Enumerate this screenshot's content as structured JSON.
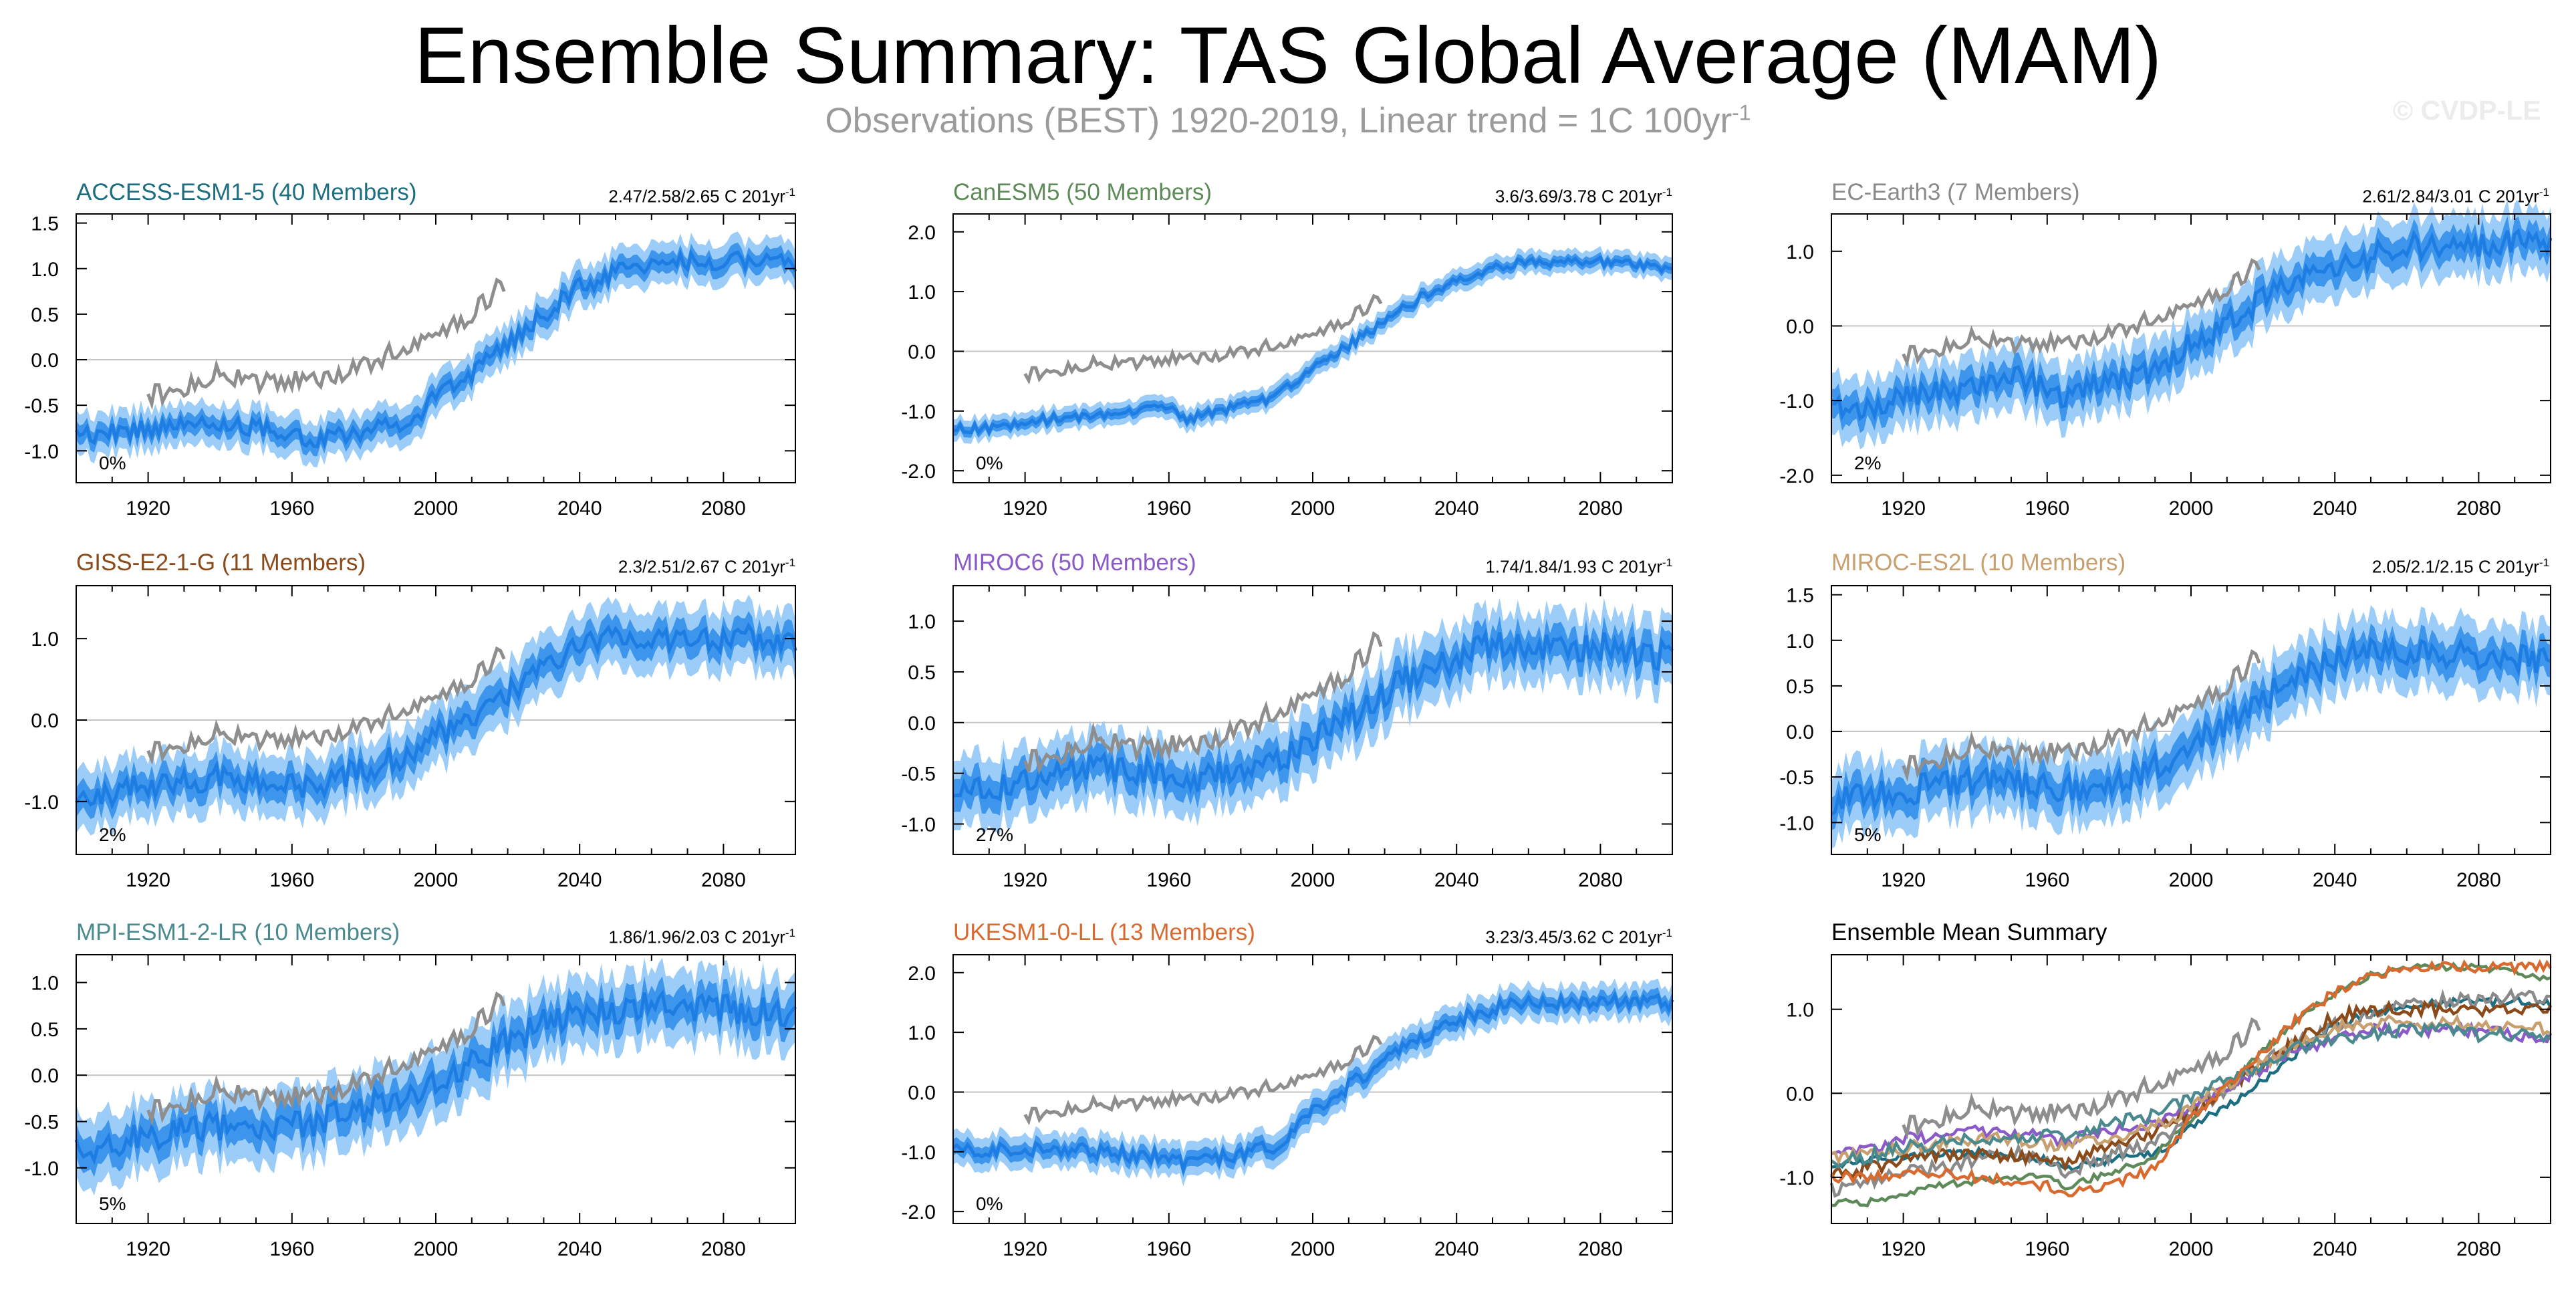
{
  "title": "Ensemble Summary: TAS Global Average (MAM)",
  "subtitle": {
    "text": "Observations (BEST) 1920-2019, Linear trend = 1C 100yr",
    "superscript": "-1"
  },
  "copyright": "© CVDP-LE",
  "colors": {
    "observations": "#8e8e8e",
    "ensemble_mean": "#1e7de3",
    "inner_band": "#3d96ec",
    "outer_band": "#9ccdf8",
    "zero_line": "#c4c4c4"
  },
  "chart_data": [
    {
      "type": "line",
      "title": "ACCESS-ESM1-5 (40 Members)",
      "title_color": "#1c6e80",
      "trend": "2.47/2.58/2.65 C 201yr",
      "trend_superscript": "-1",
      "percent": "0%",
      "xlim": [
        1900,
        2100
      ],
      "ylim": [
        -1.35,
        1.6
      ],
      "yticks": [
        "1.5",
        "1.0",
        "0.5",
        "0.0",
        "-0.5",
        "-1.0"
      ],
      "xticks": [
        "1920",
        "1960",
        "2000",
        "2040",
        "2080"
      ],
      "ensemble_mean": {
        "x": [
          1900,
          1910,
          1920,
          1930,
          1940,
          1950,
          1960,
          1965,
          1970,
          1980,
          1990,
          1995,
          2000,
          2010,
          2020,
          2030,
          2040,
          2050,
          2060,
          2070,
          2080,
          2090,
          2100
        ],
        "y": [
          -0.85,
          -0.8,
          -0.75,
          -0.72,
          -0.7,
          -0.75,
          -0.8,
          -0.88,
          -0.85,
          -0.78,
          -0.72,
          -0.6,
          -0.4,
          -0.15,
          0.15,
          0.5,
          0.8,
          0.95,
          1.05,
          1.08,
          1.08,
          1.1,
          1.05
        ]
      },
      "band_halfwidth": 0.12,
      "observations": {
        "x": [
          1920,
          1930,
          1940,
          1950,
          1960,
          1970,
          1980,
          1990,
          2000,
          2010,
          2019
        ],
        "y": [
          -0.4,
          -0.3,
          -0.15,
          -0.25,
          -0.2,
          -0.2,
          -0.05,
          0.1,
          0.3,
          0.5,
          0.85
        ]
      }
    },
    {
      "type": "line",
      "title": "CanESM5 (50 Members)",
      "title_color": "#5e8a5a",
      "trend": "3.6/3.69/3.78 C 201yr",
      "trend_superscript": "-1",
      "percent": "0%",
      "xlim": [
        1900,
        2100
      ],
      "ylim": [
        -2.2,
        2.3
      ],
      "yticks": [
        "2.0",
        "1.0",
        "0.0",
        "-1.0",
        "-2.0"
      ],
      "xticks": [
        "1920",
        "1960",
        "2000",
        "2040",
        "2080"
      ],
      "ensemble_mean": {
        "x": [
          1900,
          1910,
          1920,
          1930,
          1940,
          1950,
          1960,
          1965,
          1970,
          1980,
          1990,
          1995,
          2000,
          2010,
          2020,
          2030,
          2040,
          2050,
          2060,
          2070,
          2080,
          2090,
          2100
        ],
        "y": [
          -1.3,
          -1.3,
          -1.2,
          -1.1,
          -1.05,
          -1.0,
          -0.95,
          -1.15,
          -1.05,
          -0.9,
          -0.75,
          -0.5,
          -0.3,
          0.1,
          0.5,
          0.9,
          1.2,
          1.4,
          1.5,
          1.5,
          1.5,
          1.45,
          1.35
        ]
      },
      "band_halfwidth": 0.1,
      "observations": {
        "x": [
          1920,
          1930,
          1940,
          1950,
          1960,
          1970,
          1980,
          1990,
          2000,
          2010,
          2019
        ],
        "y": [
          -0.4,
          -0.3,
          -0.2,
          -0.2,
          -0.1,
          -0.1,
          0.0,
          0.1,
          0.3,
          0.55,
          0.9
        ]
      }
    },
    {
      "type": "line",
      "title": "EC-Earth3 (7 Members)",
      "title_color": "#8a8a8a",
      "trend": "2.61/2.84/3.01 C 201yr",
      "trend_superscript": "-1",
      "percent": "2%",
      "xlim": [
        1900,
        2100
      ],
      "ylim": [
        -2.1,
        1.5
      ],
      "yticks": [
        "1.0",
        "0.0",
        "-1.0",
        "-2.0"
      ],
      "xticks": [
        "1920",
        "1960",
        "2000",
        "2040",
        "2080"
      ],
      "ensemble_mean": {
        "x": [
          1900,
          1910,
          1920,
          1930,
          1940,
          1950,
          1960,
          1965,
          1970,
          1980,
          1990,
          1995,
          2000,
          2010,
          2020,
          2030,
          2040,
          2050,
          2060,
          2070,
          2080,
          2090,
          2100
        ],
        "y": [
          -1.15,
          -1.05,
          -0.95,
          -0.9,
          -0.8,
          -0.7,
          -0.8,
          -0.95,
          -0.85,
          -0.7,
          -0.6,
          -0.45,
          -0.25,
          0.05,
          0.35,
          0.6,
          0.8,
          0.95,
          1.05,
          1.1,
          1.1,
          1.15,
          1.15
        ]
      },
      "band_halfwidth": 0.22,
      "observations": {
        "x": [
          1920,
          1930,
          1940,
          1950,
          1960,
          1970,
          1980,
          1990,
          2000,
          2010,
          2019
        ],
        "y": [
          -0.4,
          -0.3,
          -0.15,
          -0.25,
          -0.2,
          -0.2,
          -0.05,
          0.1,
          0.3,
          0.5,
          0.85
        ]
      }
    },
    {
      "type": "line",
      "title": "GISS-E2-1-G (11 Members)",
      "title_color": "#8a4a1a",
      "trend": "2.3/2.51/2.67 C 201yr",
      "trend_superscript": "-1",
      "percent": "2%",
      "xlim": [
        1900,
        2100
      ],
      "ylim": [
        -1.65,
        1.65
      ],
      "yticks": [
        "1.0",
        "0.0",
        "-1.0"
      ],
      "xticks": [
        "1920",
        "1960",
        "2000",
        "2040",
        "2080"
      ],
      "ensemble_mean": {
        "x": [
          1900,
          1910,
          1920,
          1930,
          1940,
          1950,
          1960,
          1965,
          1970,
          1980,
          1990,
          1995,
          2000,
          2010,
          2020,
          2030,
          2040,
          2050,
          2060,
          2070,
          2080,
          2090,
          2100
        ],
        "y": [
          -0.95,
          -0.9,
          -0.8,
          -0.75,
          -0.7,
          -0.75,
          -0.8,
          -0.85,
          -0.75,
          -0.6,
          -0.45,
          -0.35,
          -0.2,
          0.05,
          0.35,
          0.65,
          0.9,
          1.0,
          1.0,
          1.0,
          1.0,
          1.0,
          1.0
        ]
      },
      "band_halfwidth": 0.2,
      "observations": {
        "x": [
          1920,
          1930,
          1940,
          1950,
          1960,
          1970,
          1980,
          1990,
          2000,
          2010,
          2019
        ],
        "y": [
          -0.4,
          -0.3,
          -0.15,
          -0.25,
          -0.2,
          -0.2,
          -0.05,
          0.1,
          0.3,
          0.5,
          0.85
        ]
      }
    },
    {
      "type": "line",
      "title": "MIROC6 (50 Members)",
      "title_color": "#8a5ac8",
      "trend": "1.74/1.84/1.93 C 201yr",
      "trend_superscript": "-1",
      "percent": "27%",
      "xlim": [
        1900,
        2100
      ],
      "ylim": [
        -1.3,
        1.35
      ],
      "yticks": [
        "1.0",
        "0.5",
        "0.0",
        "-0.5",
        "-1.0"
      ],
      "xticks": [
        "1920",
        "1960",
        "2000",
        "2040",
        "2080"
      ],
      "ensemble_mean": {
        "x": [
          1900,
          1910,
          1920,
          1930,
          1940,
          1950,
          1960,
          1965,
          1970,
          1980,
          1990,
          1995,
          2000,
          2010,
          2020,
          2030,
          2040,
          2050,
          2060,
          2070,
          2080,
          2090,
          2100
        ],
        "y": [
          -0.75,
          -0.65,
          -0.55,
          -0.5,
          -0.45,
          -0.5,
          -0.5,
          -0.6,
          -0.5,
          -0.45,
          -0.35,
          -0.3,
          -0.15,
          0.05,
          0.3,
          0.5,
          0.65,
          0.75,
          0.75,
          0.75,
          0.75,
          0.7,
          0.65
        ]
      },
      "band_halfwidth": 0.18,
      "observations": {
        "x": [
          1920,
          1930,
          1940,
          1950,
          1960,
          1970,
          1980,
          1990,
          2000,
          2010,
          2019
        ],
        "y": [
          -0.4,
          -0.3,
          -0.15,
          -0.25,
          -0.2,
          -0.2,
          -0.05,
          0.1,
          0.3,
          0.5,
          0.85
        ]
      }
    },
    {
      "type": "line",
      "title": "MIROC-ES2L (10 Members)",
      "title_color": "#c8a070",
      "trend": "2.05/2.1/2.15 C 201yr",
      "trend_superscript": "-1",
      "percent": "5%",
      "xlim": [
        1900,
        2100
      ],
      "ylim": [
        -1.35,
        1.6
      ],
      "yticks": [
        "1.5",
        "1.0",
        "0.5",
        "0.0",
        "-0.5",
        "-1.0"
      ],
      "xticks": [
        "1920",
        "1960",
        "2000",
        "2040",
        "2080"
      ],
      "ensemble_mean": {
        "x": [
          1900,
          1910,
          1920,
          1930,
          1940,
          1950,
          1960,
          1965,
          1970,
          1980,
          1990,
          1995,
          2000,
          2010,
          2020,
          2030,
          2040,
          2050,
          2060,
          2070,
          2080,
          2090,
          2100
        ],
        "y": [
          -0.75,
          -0.7,
          -0.65,
          -0.6,
          -0.55,
          -0.55,
          -0.6,
          -0.65,
          -0.6,
          -0.5,
          -0.4,
          -0.3,
          -0.15,
          0.1,
          0.35,
          0.6,
          0.8,
          0.85,
          0.85,
          0.85,
          0.8,
          0.8,
          0.75
        ]
      },
      "band_halfwidth": 0.2,
      "observations": {
        "x": [
          1920,
          1930,
          1940,
          1950,
          1960,
          1970,
          1980,
          1990,
          2000,
          2010,
          2019
        ],
        "y": [
          -0.4,
          -0.3,
          -0.15,
          -0.25,
          -0.2,
          -0.2,
          -0.05,
          0.1,
          0.3,
          0.5,
          0.85
        ]
      }
    },
    {
      "type": "line",
      "title": "MPI-ESM1-2-LR (10 Members)",
      "title_color": "#4a8a8e",
      "trend": "1.86/1.96/2.03 C 201yr",
      "trend_superscript": "-1",
      "percent": "5%",
      "xlim": [
        1900,
        2100
      ],
      "ylim": [
        -1.6,
        1.3
      ],
      "yticks": [
        "1.0",
        "0.5",
        "0.0",
        "-0.5",
        "-1.0"
      ],
      "xticks": [
        "1920",
        "1960",
        "2000",
        "2040",
        "2080"
      ],
      "ensemble_mean": {
        "x": [
          1900,
          1910,
          1920,
          1930,
          1940,
          1950,
          1960,
          1965,
          1970,
          1980,
          1990,
          1995,
          2000,
          2010,
          2020,
          2030,
          2040,
          2050,
          2060,
          2070,
          2080,
          2090,
          2100
        ],
        "y": [
          -0.85,
          -0.75,
          -0.65,
          -0.6,
          -0.55,
          -0.55,
          -0.5,
          -0.55,
          -0.45,
          -0.35,
          -0.25,
          -0.15,
          -0.05,
          0.15,
          0.35,
          0.55,
          0.65,
          0.7,
          0.75,
          0.75,
          0.7,
          0.7,
          0.65
        ]
      },
      "band_halfwidth": 0.2,
      "observations": {
        "x": [
          1920,
          1930,
          1940,
          1950,
          1960,
          1970,
          1980,
          1990,
          2000,
          2010,
          2019
        ],
        "y": [
          -0.4,
          -0.3,
          -0.15,
          -0.25,
          -0.2,
          -0.2,
          -0.05,
          0.1,
          0.3,
          0.5,
          0.85
        ]
      }
    },
    {
      "type": "line",
      "title": "UKESM1-0-LL (13 Members)",
      "title_color": "#d86a30",
      "trend": "3.23/3.45/3.62 C 201yr",
      "trend_superscript": "-1",
      "percent": "0%",
      "xlim": [
        1900,
        2100
      ],
      "ylim": [
        -2.2,
        2.3
      ],
      "yticks": [
        "2.0",
        "1.0",
        "0.0",
        "-1.0",
        "-2.0"
      ],
      "xticks": [
        "1920",
        "1960",
        "2000",
        "2040",
        "2080"
      ],
      "ensemble_mean": {
        "x": [
          1900,
          1910,
          1920,
          1930,
          1940,
          1950,
          1960,
          1965,
          1970,
          1980,
          1990,
          1995,
          2000,
          2010,
          2020,
          2030,
          2040,
          2050,
          2060,
          2070,
          2080,
          2090,
          2100
        ],
        "y": [
          -1.0,
          -1.0,
          -0.95,
          -0.95,
          -1.0,
          -1.05,
          -1.1,
          -1.2,
          -1.15,
          -1.05,
          -0.9,
          -0.6,
          -0.3,
          0.1,
          0.5,
          0.9,
          1.2,
          1.4,
          1.5,
          1.5,
          1.5,
          1.5,
          1.5
        ]
      },
      "band_halfwidth": 0.15,
      "observations": {
        "x": [
          1920,
          1930,
          1940,
          1950,
          1960,
          1970,
          1980,
          1990,
          2000,
          2010,
          2019
        ],
        "y": [
          -0.4,
          -0.3,
          -0.2,
          -0.2,
          -0.1,
          -0.1,
          0.0,
          0.1,
          0.3,
          0.55,
          0.9
        ]
      }
    },
    {
      "type": "line",
      "title": "Ensemble Mean Summary",
      "title_color": "#000000",
      "trend": "",
      "trend_superscript": "",
      "percent": "",
      "xlim": [
        1900,
        2100
      ],
      "ylim": [
        -1.55,
        1.65
      ],
      "yticks": [
        "1.0",
        "0.0",
        "-1.0"
      ],
      "xticks": [
        "1920",
        "1960",
        "2000",
        "2040",
        "2080"
      ],
      "observations": {
        "x": [
          1920,
          1930,
          1940,
          1950,
          1960,
          1970,
          1980,
          1990,
          2000,
          2010,
          2019
        ],
        "y": [
          -0.4,
          -0.3,
          -0.15,
          -0.25,
          -0.2,
          -0.2,
          -0.05,
          0.1,
          0.3,
          0.5,
          0.85
        ]
      },
      "series": [
        {
          "model_index": 0
        },
        {
          "model_index": 1
        },
        {
          "model_index": 2
        },
        {
          "model_index": 3
        },
        {
          "model_index": 4
        },
        {
          "model_index": 5
        },
        {
          "model_index": 6
        },
        {
          "model_index": 7
        }
      ]
    }
  ]
}
